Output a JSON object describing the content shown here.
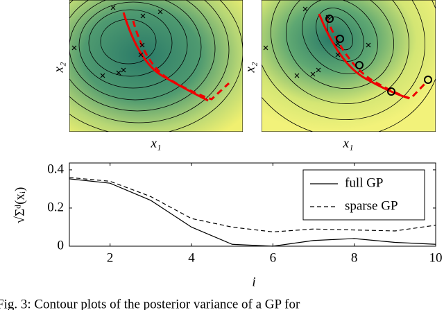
{
  "chart_data": [
    {
      "type": "contour",
      "xlabel": "x₁",
      "ylabel": "x₂"
    },
    {
      "type": "contour",
      "xlabel": "x₁",
      "ylabel": "x₂"
    },
    {
      "type": "line",
      "xlabel": "i",
      "ylabel": "√Σᵈ(xᵢ)",
      "x": [
        1,
        2,
        3,
        4,
        5,
        6,
        7,
        8,
        9,
        10
      ],
      "series": [
        {
          "name": "full GP",
          "color": "#000000",
          "dash": false,
          "values": [
            0.353,
            0.33,
            0.24,
            0.1,
            0.01,
            0.0,
            0.03,
            0.04,
            0.02,
            0.01
          ]
        },
        {
          "name": "sparse GP",
          "color": "#000000",
          "dash": true,
          "values": [
            0.36,
            0.34,
            0.26,
            0.145,
            0.1,
            0.075,
            0.09,
            0.085,
            0.08,
            0.11
          ]
        }
      ],
      "xlim": [
        1,
        10
      ],
      "ylim": [
        0,
        0.436
      ],
      "xticks": [
        2,
        4,
        6,
        8,
        10
      ],
      "yticks": [
        0,
        0.2,
        0.4
      ],
      "legend": "upper right"
    }
  ],
  "caption": "Fig. 3: Contour plots of the posterior variance of a GP for"
}
